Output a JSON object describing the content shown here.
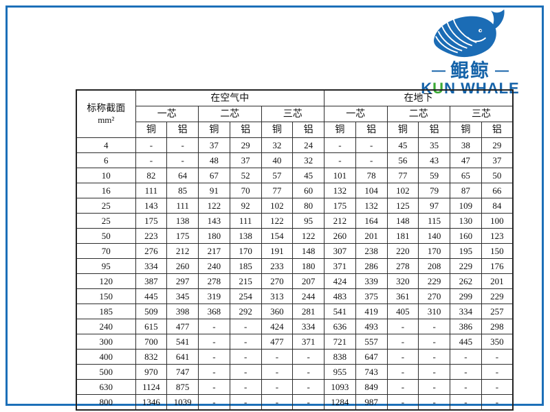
{
  "logo": {
    "brand_cn": "鲲鲸",
    "dash_left": "—",
    "dash_right": "—",
    "brand_en_k": "K",
    "brand_en_u": "U",
    "brand_en_rest": "N WHALE",
    "colors": {
      "blue": "#1563a9",
      "green": "#3aa935",
      "whale": "#1b6cb5"
    }
  },
  "frame_color": "#1c6fb8",
  "table": {
    "header": {
      "section_label": "标称截面",
      "section_unit": "mm²",
      "groups": [
        "在空气中",
        "在地下"
      ],
      "cores": [
        "一芯",
        "二芯",
        "三芯"
      ],
      "metals": [
        "铜",
        "铝"
      ]
    },
    "rows": [
      {
        "size": "4",
        "values": [
          "-",
          "-",
          "37",
          "29",
          "32",
          "24",
          "-",
          "-",
          "45",
          "35",
          "38",
          "29"
        ]
      },
      {
        "size": "6",
        "values": [
          "-",
          "-",
          "48",
          "37",
          "40",
          "32",
          "-",
          "-",
          "56",
          "43",
          "47",
          "37"
        ]
      },
      {
        "size": "10",
        "values": [
          "82",
          "64",
          "67",
          "52",
          "57",
          "45",
          "101",
          "78",
          "77",
          "59",
          "65",
          "50"
        ]
      },
      {
        "size": "16",
        "values": [
          "111",
          "85",
          "91",
          "70",
          "77",
          "60",
          "132",
          "104",
          "102",
          "79",
          "87",
          "66"
        ]
      },
      {
        "size": "25",
        "values": [
          "143",
          "111",
          "122",
          "92",
          "102",
          "80",
          "175",
          "132",
          "125",
          "97",
          "109",
          "84"
        ]
      },
      {
        "size": "25",
        "values": [
          "175",
          "138",
          "143",
          "111",
          "122",
          "95",
          "212",
          "164",
          "148",
          "115",
          "130",
          "100"
        ]
      },
      {
        "size": "50",
        "values": [
          "223",
          "175",
          "180",
          "138",
          "154",
          "122",
          "260",
          "201",
          "181",
          "140",
          "160",
          "123"
        ]
      },
      {
        "size": "70",
        "values": [
          "276",
          "212",
          "217",
          "170",
          "191",
          "148",
          "307",
          "238",
          "220",
          "170",
          "195",
          "150"
        ]
      },
      {
        "size": "95",
        "values": [
          "334",
          "260",
          "240",
          "185",
          "233",
          "180",
          "371",
          "286",
          "278",
          "208",
          "229",
          "176"
        ]
      },
      {
        "size": "120",
        "values": [
          "387",
          "297",
          "278",
          "215",
          "270",
          "207",
          "424",
          "339",
          "320",
          "229",
          "262",
          "201"
        ]
      },
      {
        "size": "150",
        "values": [
          "445",
          "345",
          "319",
          "254",
          "313",
          "244",
          "483",
          "375",
          "361",
          "270",
          "299",
          "229"
        ]
      },
      {
        "size": "185",
        "values": [
          "509",
          "398",
          "368",
          "292",
          "360",
          "281",
          "541",
          "419",
          "405",
          "310",
          "334",
          "257"
        ]
      },
      {
        "size": "240",
        "values": [
          "615",
          "477",
          "-",
          "-",
          "424",
          "334",
          "636",
          "493",
          "-",
          "-",
          "386",
          "298"
        ]
      },
      {
        "size": "300",
        "values": [
          "700",
          "541",
          "-",
          "-",
          "477",
          "371",
          "721",
          "557",
          "-",
          "-",
          "445",
          "350"
        ]
      },
      {
        "size": "400",
        "values": [
          "832",
          "641",
          "-",
          "-",
          "-",
          "-",
          "838",
          "647",
          "-",
          "-",
          "-",
          "-"
        ]
      },
      {
        "size": "500",
        "values": [
          "970",
          "747",
          "-",
          "-",
          "-",
          "-",
          "955",
          "743",
          "-",
          "-",
          "-",
          "-"
        ]
      },
      {
        "size": "630",
        "values": [
          "1124",
          "875",
          "-",
          "-",
          "-",
          "-",
          "1093",
          "849",
          "-",
          "-",
          "-",
          "-"
        ]
      },
      {
        "size": "800",
        "values": [
          "1346",
          "1039",
          "-",
          "-",
          "-",
          "-",
          "1284",
          "987",
          "-",
          "-",
          "-",
          "-"
        ]
      }
    ]
  }
}
